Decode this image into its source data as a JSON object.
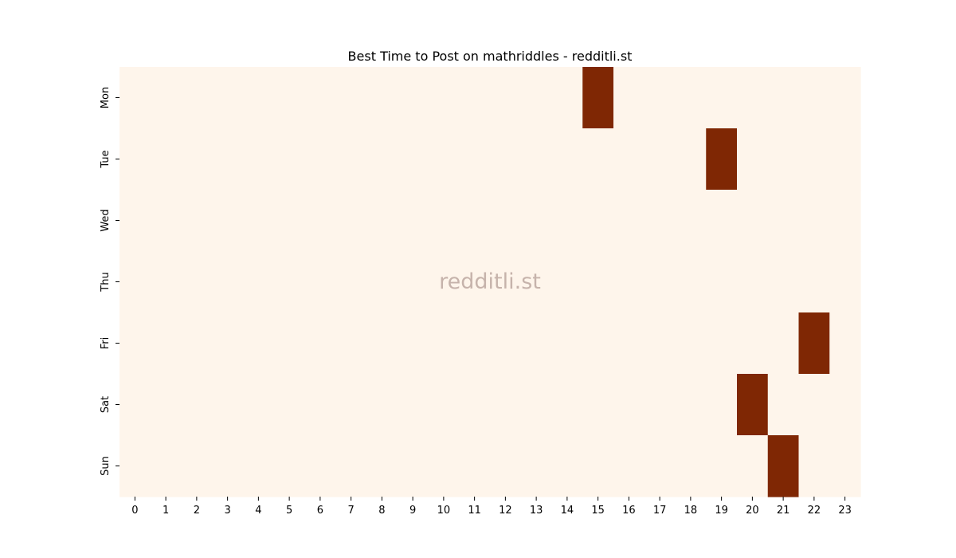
{
  "chart_data": {
    "type": "heatmap",
    "title": "Best Time to Post on mathriddles - redditli.st",
    "watermark": "redditli.st",
    "xlabel": "",
    "ylabel": "",
    "x_categories": [
      "0",
      "1",
      "2",
      "3",
      "4",
      "5",
      "6",
      "7",
      "8",
      "9",
      "10",
      "11",
      "12",
      "13",
      "14",
      "15",
      "16",
      "17",
      "18",
      "19",
      "20",
      "21",
      "22",
      "23"
    ],
    "y_categories": [
      "Mon",
      "Tue",
      "Wed",
      "Thu",
      "Fri",
      "Sat",
      "Sun"
    ],
    "values": [
      [
        0,
        0,
        0,
        0,
        0,
        0,
        0,
        0,
        0,
        0,
        0,
        0,
        0,
        0,
        0,
        1,
        0,
        0,
        0,
        0,
        0,
        0,
        0,
        0
      ],
      [
        0,
        0,
        0,
        0,
        0,
        0,
        0,
        0,
        0,
        0,
        0,
        0,
        0,
        0,
        0,
        0,
        0,
        0,
        0,
        1,
        0,
        0,
        0,
        0
      ],
      [
        0,
        0,
        0,
        0,
        0,
        0,
        0,
        0,
        0,
        0,
        0,
        0,
        0,
        0,
        0,
        0,
        0,
        0,
        0,
        0,
        0,
        0,
        0,
        0
      ],
      [
        0,
        0,
        0,
        0,
        0,
        0,
        0,
        0,
        0,
        0,
        0,
        0,
        0,
        0,
        0,
        0,
        0,
        0,
        0,
        0,
        0,
        0,
        0,
        0
      ],
      [
        0,
        0,
        0,
        0,
        0,
        0,
        0,
        0,
        0,
        0,
        0,
        0,
        0,
        0,
        0,
        0,
        0,
        0,
        0,
        0,
        0,
        0,
        1,
        0
      ],
      [
        0,
        0,
        0,
        0,
        0,
        0,
        0,
        0,
        0,
        0,
        0,
        0,
        0,
        0,
        0,
        0,
        0,
        0,
        0,
        0,
        1,
        0,
        0,
        0
      ],
      [
        0,
        0,
        0,
        0,
        0,
        0,
        0,
        0,
        0,
        0,
        0,
        0,
        0,
        0,
        0,
        0,
        0,
        0,
        0,
        0,
        0,
        1,
        0,
        0
      ]
    ],
    "colors": {
      "low": "#fef5eb",
      "high": "#7f2704",
      "watermark": "#c6b3ab"
    },
    "legend": "none",
    "grid": false
  }
}
